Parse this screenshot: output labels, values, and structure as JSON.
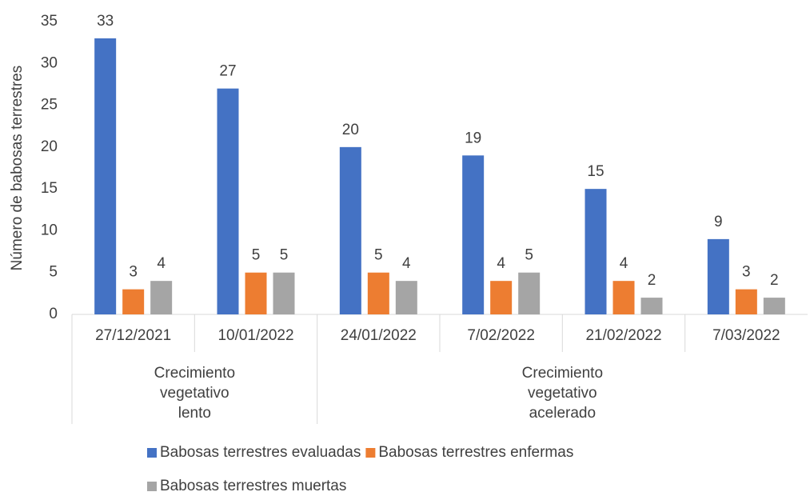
{
  "chart_data": {
    "type": "bar",
    "y_label": "Número de babosas terrestres",
    "categories": [
      "27/12/2021",
      "10/01/2022",
      "24/01/2022",
      "7/02/2022",
      "21/02/2022",
      "7/03/2022"
    ],
    "groups": [
      {
        "name": "Crecimiento vegetativo lento",
        "span": 2
      },
      {
        "name": "Crecimiento vegetativo acelerado",
        "span": 4
      }
    ],
    "series": [
      {
        "name": "Babosas terrestres evaluadas",
        "color": "#4472c4",
        "values": [
          33,
          27,
          20,
          19,
          15,
          9
        ]
      },
      {
        "name": "Babosas terrestres enfermas",
        "color": "#ed7d31",
        "values": [
          3,
          5,
          5,
          4,
          4,
          3
        ]
      },
      {
        "name": "Babosas terrestres muertas",
        "color": "#a5a5a5",
        "values": [
          4,
          5,
          4,
          5,
          2,
          2
        ]
      }
    ],
    "ylim": [
      0,
      35
    ],
    "yticks": [
      0,
      5,
      10,
      15,
      20,
      25,
      30,
      35
    ],
    "grid": false,
    "legend": "bottom"
  }
}
